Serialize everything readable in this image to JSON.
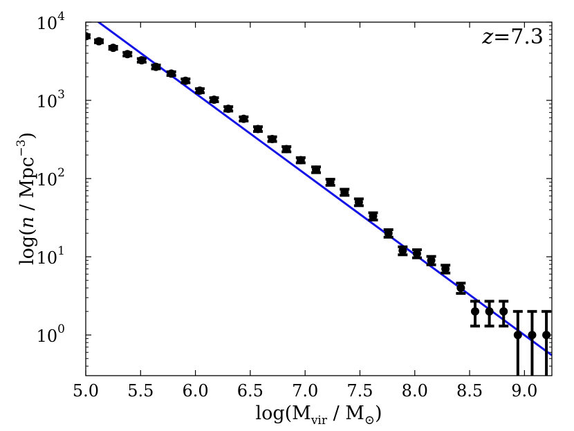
{
  "chart_data": {
    "type": "scatter",
    "title": "",
    "annotation": {
      "italic": "z",
      "rest": "=7.3"
    },
    "xlabel": {
      "prefix": "log(M",
      "sub1": "vir",
      "middle": " / M",
      "sub2": "⊙",
      "suffix": ")"
    },
    "ylabel": {
      "prefix": "log(",
      "italic": "n",
      "middle": " / Mpc",
      "sup": "−3",
      "suffix": ")"
    },
    "xlim": [
      5.0,
      9.25
    ],
    "ylim_log10": [
      -0.52,
      4.0
    ],
    "y_scale": "log",
    "grid": false,
    "x_ticks": [
      "5.0",
      "5.5",
      "6.0",
      "6.5",
      "7.0",
      "7.5",
      "8.0",
      "8.5",
      "9.0"
    ],
    "y_ticks": [
      {
        "exp": 0,
        "label_base": "10",
        "label_exp": "0"
      },
      {
        "exp": 1,
        "label_base": "10",
        "label_exp": "1"
      },
      {
        "exp": 2,
        "label_base": "10",
        "label_exp": "2"
      },
      {
        "exp": 3,
        "label_base": "10",
        "label_exp": "3"
      },
      {
        "exp": 4,
        "label_base": "10",
        "label_exp": "4"
      }
    ],
    "series": [
      {
        "kind": "points",
        "color": "#000000",
        "points": [
          {
            "x": 5.0,
            "y": 6600,
            "ylo": 6300,
            "yhi": 6900
          },
          {
            "x": 5.12,
            "y": 5700,
            "ylo": 5450,
            "yhi": 5950
          },
          {
            "x": 5.25,
            "y": 4700,
            "ylo": 4500,
            "yhi": 4900
          },
          {
            "x": 5.38,
            "y": 3900,
            "ylo": 3700,
            "yhi": 4100
          },
          {
            "x": 5.51,
            "y": 3250,
            "ylo": 3080,
            "yhi": 3420
          },
          {
            "x": 5.64,
            "y": 2680,
            "ylo": 2530,
            "yhi": 2830
          },
          {
            "x": 5.78,
            "y": 2200,
            "ylo": 2080,
            "yhi": 2320
          },
          {
            "x": 5.91,
            "y": 1780,
            "ylo": 1680,
            "yhi": 1880
          },
          {
            "x": 6.04,
            "y": 1330,
            "ylo": 1250,
            "yhi": 1410
          },
          {
            "x": 6.17,
            "y": 1020,
            "ylo": 960,
            "yhi": 1080
          },
          {
            "x": 6.3,
            "y": 780,
            "ylo": 730,
            "yhi": 830
          },
          {
            "x": 6.44,
            "y": 580,
            "ylo": 545,
            "yhi": 615
          },
          {
            "x": 6.57,
            "y": 430,
            "ylo": 400,
            "yhi": 460
          },
          {
            "x": 6.7,
            "y": 320,
            "ylo": 298,
            "yhi": 342
          },
          {
            "x": 6.83,
            "y": 238,
            "ylo": 220,
            "yhi": 256
          },
          {
            "x": 6.96,
            "y": 172,
            "ylo": 159,
            "yhi": 185
          },
          {
            "x": 7.1,
            "y": 130,
            "ylo": 119,
            "yhi": 141
          },
          {
            "x": 7.23,
            "y": 90,
            "ylo": 82,
            "yhi": 98
          },
          {
            "x": 7.36,
            "y": 67,
            "ylo": 61,
            "yhi": 73
          },
          {
            "x": 7.49,
            "y": 50,
            "ylo": 45,
            "yhi": 55
          },
          {
            "x": 7.62,
            "y": 33,
            "ylo": 29.5,
            "yhi": 36.5
          },
          {
            "x": 7.76,
            "y": 20,
            "ylo": 17.8,
            "yhi": 22.2
          },
          {
            "x": 7.89,
            "y": 12,
            "ylo": 10.6,
            "yhi": 13.4
          },
          {
            "x": 8.02,
            "y": 11,
            "ylo": 9.7,
            "yhi": 12.3
          },
          {
            "x": 8.15,
            "y": 9,
            "ylo": 7.9,
            "yhi": 10.1
          },
          {
            "x": 8.28,
            "y": 7,
            "ylo": 6.2,
            "yhi": 7.8
          },
          {
            "x": 8.42,
            "y": 4,
            "ylo": 3.4,
            "yhi": 4.6
          },
          {
            "x": 8.55,
            "y": 2,
            "ylo": 1.3,
            "yhi": 2.7
          },
          {
            "x": 8.68,
            "y": 2,
            "ylo": 1.3,
            "yhi": 2.7
          },
          {
            "x": 8.81,
            "y": 2,
            "ylo": 1.3,
            "yhi": 2.7
          },
          {
            "x": 8.94,
            "y": 1,
            "ylo": 0.2,
            "yhi": 2.0
          },
          {
            "x": 9.07,
            "y": 1,
            "ylo": 0.2,
            "yhi": 2.0
          },
          {
            "x": 9.2,
            "y": 1,
            "ylo": 0.2,
            "yhi": 2.0
          }
        ]
      },
      {
        "kind": "line",
        "color": "#1414e6",
        "points": [
          {
            "x": 5.0,
            "y": 13200
          },
          {
            "x": 9.25,
            "y": 0.55
          }
        ]
      }
    ]
  }
}
